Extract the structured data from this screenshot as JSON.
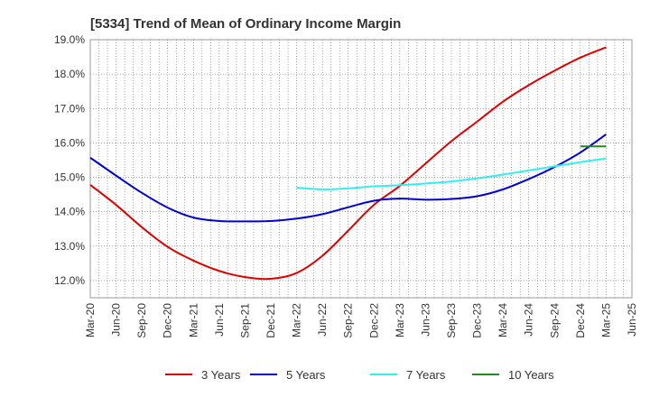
{
  "chart_data": {
    "type": "line",
    "title": "[5334]  Trend of Mean of Ordinary Income Margin",
    "xlabel": "",
    "ylabel": "",
    "x_ticks": [
      "Mar-20",
      "Jun-20",
      "Sep-20",
      "Dec-20",
      "Mar-21",
      "Jun-21",
      "Sep-21",
      "Dec-21",
      "Mar-22",
      "Jun-22",
      "Sep-22",
      "Dec-22",
      "Mar-23",
      "Jun-23",
      "Sep-23",
      "Dec-23",
      "Mar-24",
      "Jun-24",
      "Sep-24",
      "Dec-24",
      "Mar-25",
      "Jun-25"
    ],
    "y_ticks": [
      "12.0%",
      "13.0%",
      "14.0%",
      "15.0%",
      "16.0%",
      "17.0%",
      "18.0%",
      "19.0%"
    ],
    "ylim": [
      11.5,
      19.0
    ],
    "grid": true,
    "legend_position": "bottom",
    "series": [
      {
        "name": "3 Years",
        "color": "#dd0000",
        "x": [
          "Mar-20",
          "Jun-20",
          "Sep-20",
          "Dec-20",
          "Mar-21",
          "Jun-21",
          "Sep-21",
          "Dec-21",
          "Mar-22",
          "Jun-22",
          "Sep-22",
          "Dec-22",
          "Mar-23",
          "Jun-23",
          "Sep-23",
          "Dec-23",
          "Mar-24",
          "Jun-24",
          "Sep-24",
          "Dec-24",
          "Mar-25"
        ],
        "values": [
          14.78,
          14.2,
          13.55,
          12.98,
          12.58,
          12.28,
          12.1,
          12.05,
          12.22,
          12.72,
          13.45,
          14.2,
          14.75,
          15.4,
          16.05,
          16.62,
          17.2,
          17.68,
          18.1,
          18.48,
          18.78
        ]
      },
      {
        "name": "5 Years",
        "color": "#0000cc",
        "x": [
          "Mar-20",
          "Jun-20",
          "Sep-20",
          "Dec-20",
          "Mar-21",
          "Jun-21",
          "Sep-21",
          "Dec-21",
          "Mar-22",
          "Jun-22",
          "Sep-22",
          "Dec-22",
          "Mar-23",
          "Jun-23",
          "Sep-23",
          "Dec-23",
          "Mar-24",
          "Jun-24",
          "Sep-24",
          "Dec-24",
          "Mar-25"
        ],
        "values": [
          15.57,
          15.05,
          14.55,
          14.12,
          13.83,
          13.73,
          13.72,
          13.73,
          13.8,
          13.93,
          14.13,
          14.32,
          14.38,
          14.35,
          14.37,
          14.45,
          14.65,
          14.95,
          15.3,
          15.72,
          16.25
        ]
      },
      {
        "name": "7 Years",
        "color": "#33eeee",
        "x": [
          "Mar-22",
          "Jun-22",
          "Sep-22",
          "Dec-22",
          "Mar-23",
          "Jun-23",
          "Sep-23",
          "Dec-23",
          "Mar-24",
          "Jun-24",
          "Sep-24",
          "Dec-24",
          "Mar-25"
        ],
        "values": [
          14.7,
          14.65,
          14.68,
          14.74,
          14.77,
          14.82,
          14.88,
          14.97,
          15.08,
          15.2,
          15.32,
          15.44,
          15.55
        ]
      },
      {
        "name": "10 Years",
        "color": "#228822",
        "x": [
          "Dec-24",
          "Mar-25"
        ],
        "values": [
          15.9,
          15.9
        ]
      }
    ]
  }
}
